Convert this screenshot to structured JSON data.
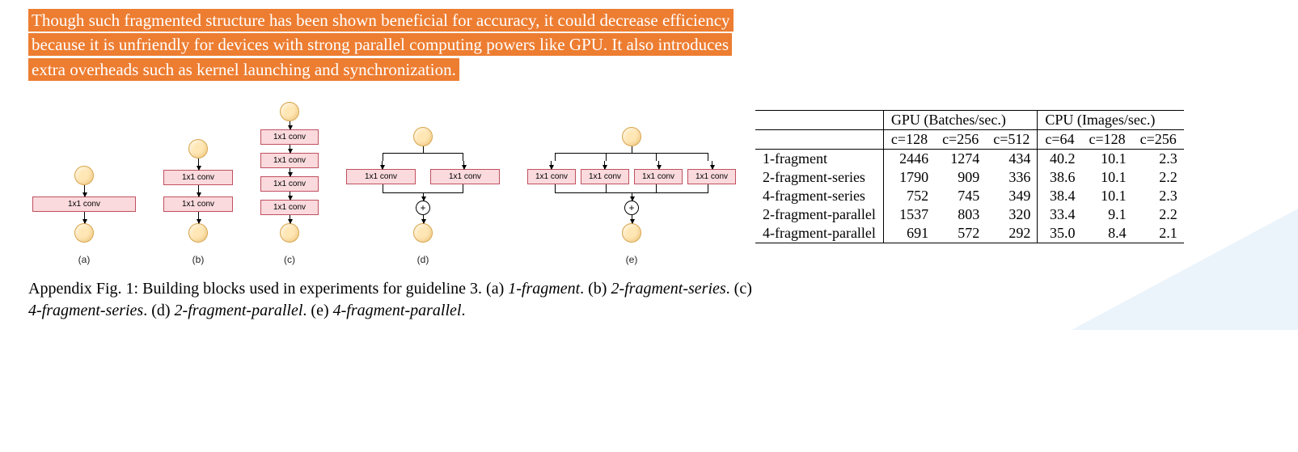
{
  "highlight_text": "Though such fragmented structure has been shown beneficial for accuracy, it could decrease efficiency because it is unfriendly for devices with strong parallel computing powers like GPU. It also introduces extra overheads such as kernel launching and synchronization.",
  "colors": {
    "highlight_bg": "#ed7d31",
    "highlight_fg": "#ffffff",
    "circle_fill": "#ffe7b5",
    "circle_border": "#d8a44a",
    "box_fill": "#fadadd",
    "box_border": "#c05060",
    "corner_triangle": "#eaf3fb"
  },
  "conv_label": "1x1 conv",
  "diagrams": {
    "a": {
      "letter": "(a)",
      "type": "series",
      "count": 1
    },
    "b": {
      "letter": "(b)",
      "type": "series",
      "count": 2
    },
    "c": {
      "letter": "(c)",
      "type": "series",
      "count": 4
    },
    "d": {
      "letter": "(d)",
      "type": "parallel",
      "count": 2
    },
    "e": {
      "letter": "(e)",
      "type": "parallel",
      "count": 4
    }
  },
  "table": {
    "gpu_header": "GPU (Batches/sec.)",
    "cpu_header": "CPU (Images/sec.)",
    "gpu_cols": [
      "c=128",
      "c=256",
      "c=512"
    ],
    "cpu_cols": [
      "c=64",
      "c=128",
      "c=256"
    ],
    "rows": [
      {
        "label": "1-fragment",
        "gpu": [
          "2446",
          "1274",
          "434"
        ],
        "cpu": [
          "40.2",
          "10.1",
          "2.3"
        ]
      },
      {
        "label": "2-fragment-series",
        "gpu": [
          "1790",
          "909",
          "336"
        ],
        "cpu": [
          "38.6",
          "10.1",
          "2.2"
        ]
      },
      {
        "label": "4-fragment-series",
        "gpu": [
          "752",
          "745",
          "349"
        ],
        "cpu": [
          "38.4",
          "10.1",
          "2.3"
        ]
      },
      {
        "label": "2-fragment-parallel",
        "gpu": [
          "1537",
          "803",
          "320"
        ],
        "cpu": [
          "33.4",
          "9.1",
          "2.2"
        ]
      },
      {
        "label": "4-fragment-parallel",
        "gpu": [
          "691",
          "572",
          "292"
        ],
        "cpu": [
          "35.0",
          "8.4",
          "2.1"
        ]
      }
    ]
  },
  "caption": {
    "prefix": "Appendix Fig. 1: Building blocks used in experiments for guideline 3. ",
    "parts": [
      {
        "tag": "(a)",
        "name": "1-fragment"
      },
      {
        "tag": "(b)",
        "name": "2-fragment-series"
      },
      {
        "tag": "(c)",
        "name": "4-fragment-series"
      },
      {
        "tag": "(d)",
        "name": "2-fragment-parallel"
      },
      {
        "tag": "(e)",
        "name": "4-fragment-parallel"
      }
    ]
  }
}
